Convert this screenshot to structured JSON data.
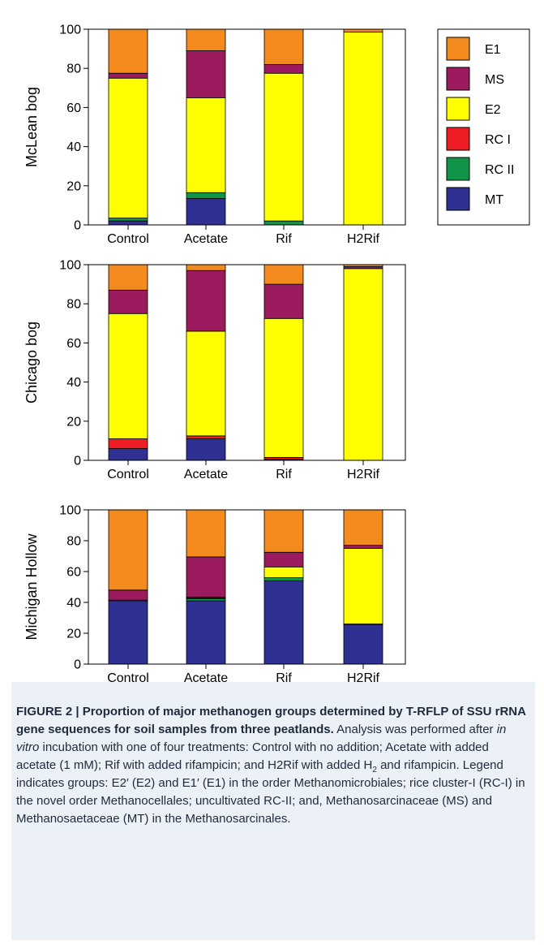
{
  "colors": {
    "E1": "#f28a1e",
    "MS": "#9b1b5e",
    "E2": "#ffff00",
    "RC I": "#ee1c24",
    "RC II": "#109447",
    "MT": "#2e3192"
  },
  "legend": [
    "E1",
    "MS",
    "E2",
    "RC I",
    "RC II",
    "MT"
  ],
  "chart_data": [
    {
      "type": "bar",
      "stacked": true,
      "ylabel": "McLean bog",
      "categories": [
        "Control",
        "Acetate",
        "Rif",
        "H2Rif"
      ],
      "ylim": [
        0,
        100
      ],
      "yticks": [
        0,
        20,
        40,
        60,
        80,
        100
      ],
      "series": [
        {
          "name": "MT",
          "values": [
            2,
            13.5,
            0,
            0
          ]
        },
        {
          "name": "RC II",
          "values": [
            1.5,
            3,
            2,
            0
          ]
        },
        {
          "name": "RC I",
          "values": [
            0,
            0,
            0,
            0
          ]
        },
        {
          "name": "E2",
          "values": [
            71.5,
            48.5,
            75.5,
            98.5
          ]
        },
        {
          "name": "MS",
          "values": [
            2.5,
            24,
            4.5,
            0
          ]
        },
        {
          "name": "E1",
          "values": [
            22.5,
            11,
            18,
            1.5
          ]
        }
      ]
    },
    {
      "type": "bar",
      "stacked": true,
      "ylabel": "Chicago bog",
      "categories": [
        "Control",
        "Acetate",
        "Rif",
        "H2Rif"
      ],
      "ylim": [
        0,
        100
      ],
      "yticks": [
        0,
        20,
        40,
        60,
        80,
        100
      ],
      "series": [
        {
          "name": "MT",
          "values": [
            6,
            11,
            0.5,
            0
          ]
        },
        {
          "name": "RC II",
          "values": [
            0,
            0,
            0,
            0
          ]
        },
        {
          "name": "RC I",
          "values": [
            5,
            1.5,
            1,
            0
          ]
        },
        {
          "name": "E2",
          "values": [
            64,
            53.5,
            71,
            98
          ]
        },
        {
          "name": "MS",
          "values": [
            12,
            31,
            17.5,
            1
          ]
        },
        {
          "name": "E1",
          "values": [
            13,
            3,
            10,
            1
          ]
        }
      ]
    },
    {
      "type": "bar",
      "stacked": true,
      "ylabel": "Michigan Hollow",
      "categories": [
        "Control",
        "Acetate",
        "Rif",
        "H2Rif"
      ],
      "ylim": [
        0,
        100
      ],
      "yticks": [
        0,
        20,
        40,
        60,
        80,
        100
      ],
      "series": [
        {
          "name": "MT",
          "values": [
            41,
            41,
            54,
            25.5
          ]
        },
        {
          "name": "RC II",
          "values": [
            0,
            1.5,
            2,
            0
          ]
        },
        {
          "name": "RC I",
          "values": [
            0.5,
            0.5,
            0,
            0.5
          ]
        },
        {
          "name": "E2",
          "values": [
            0,
            0.5,
            7,
            49
          ]
        },
        {
          "name": "MS",
          "values": [
            6.5,
            26,
            9.5,
            2
          ]
        },
        {
          "name": "E1",
          "values": [
            52,
            30.5,
            27.5,
            23
          ]
        }
      ]
    }
  ],
  "caption": {
    "title": "FIGURE 2 | Proportion of major methanogen groups determined by T-RFLP of SSU rRNA gene sequences for soil samples from three peatlands.",
    "text_1": " Analysis was performed after ",
    "text_italic": "in vitro",
    "text_2": " incubation with one of four treatments: Control with no addition; Acetate with added acetate (1 mM); Rif with added rifampicin; and H2Rif with added H",
    "text_sub": "2",
    "text_3": " and rifampicin. Legend indicates groups: E2′ (E2) and E1′ (E1) in the order Methanomicrobiales; rice cluster-I (RC-I) in the novel order Methanocellales; uncultivated RC-II; and, Methanosarcinaceae (MS) and Methanosaetaceae (MT) in the Methanosarcinales."
  }
}
